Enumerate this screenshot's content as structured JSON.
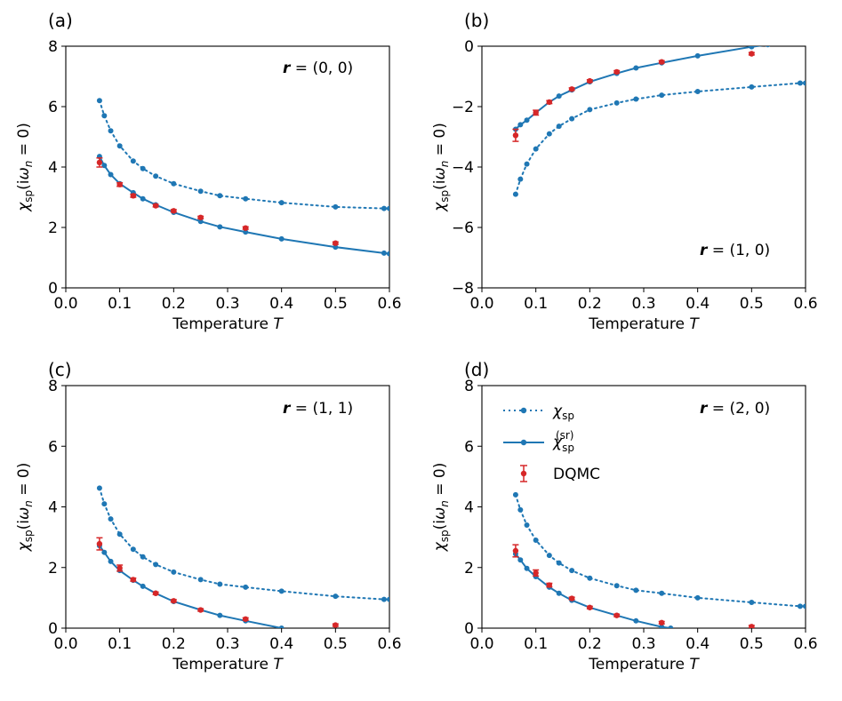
{
  "figure": {
    "xlabel_text": "Temperature ",
    "xlabel_var": "T",
    "ylabel": {
      "chi": "χ",
      "sub": "sp",
      "paren_open": "(i",
      "omega": "ω",
      "omega_sub": "n",
      "eq": " = 0)"
    },
    "colors": {
      "chi_sp": "#1f77b4",
      "chi_sr": "#1f77b4",
      "dqmc": "#d62728"
    }
  },
  "legend": {
    "chi_sp": {
      "main": "χ",
      "sub": "sp"
    },
    "chi_sr": {
      "main": "χ",
      "sub": "sp",
      "sup": "(sr)"
    },
    "dqmc": "DQMC"
  },
  "chart_data": [
    {
      "type": "line",
      "panel_label": "(a)",
      "r_bold": "r",
      "r_value": " = (0, 0)",
      "xlim": [
        0.0,
        0.6
      ],
      "ylim": [
        0,
        8
      ],
      "xticks": [
        "0.0",
        "0.1",
        "0.2",
        "0.3",
        "0.4",
        "0.5",
        "0.6"
      ],
      "yticks": [
        "0",
        "2",
        "4",
        "6",
        "8"
      ],
      "series": [
        {
          "name": "χsp",
          "style": "dotted",
          "x": [
            0.0625,
            0.0714,
            0.0833,
            0.1,
            0.125,
            0.1429,
            0.1667,
            0.2,
            0.25,
            0.2857,
            0.3333,
            0.4,
            0.5,
            0.59,
            0.6
          ],
          "y": [
            6.2,
            5.7,
            5.2,
            4.7,
            4.2,
            3.95,
            3.7,
            3.45,
            3.2,
            3.05,
            2.95,
            2.82,
            2.68,
            2.63,
            2.63
          ]
        },
        {
          "name": "χsp(sr)",
          "style": "solid",
          "x": [
            0.0625,
            0.0714,
            0.0833,
            0.1,
            0.125,
            0.1429,
            0.1667,
            0.2,
            0.25,
            0.2857,
            0.3333,
            0.4,
            0.5,
            0.59,
            0.6
          ],
          "y": [
            4.35,
            4.05,
            3.75,
            3.45,
            3.15,
            2.95,
            2.75,
            2.5,
            2.2,
            2.02,
            1.85,
            1.62,
            1.35,
            1.15,
            1.13
          ]
        },
        {
          "name": "DQMC",
          "style": "errorbar",
          "x": [
            0.0625,
            0.1,
            0.125,
            0.1667,
            0.2,
            0.25,
            0.3333,
            0.5
          ],
          "y": [
            4.15,
            3.42,
            3.05,
            2.72,
            2.55,
            2.33,
            1.98,
            1.48
          ],
          "err": [
            0.15,
            0.06,
            0.05,
            0.04,
            0.04,
            0.04,
            0.04,
            0.04
          ]
        }
      ]
    },
    {
      "type": "line",
      "panel_label": "(b)",
      "r_bold": "r",
      "r_value": " = (1, 0)",
      "xlim": [
        0.0,
        0.6
      ],
      "ylim": [
        -8,
        0
      ],
      "xticks": [
        "0.0",
        "0.1",
        "0.2",
        "0.3",
        "0.4",
        "0.5",
        "0.6"
      ],
      "yticks": [
        "−8",
        "−6",
        "−4",
        "−2",
        "0"
      ],
      "series": [
        {
          "name": "χsp",
          "style": "dotted",
          "x": [
            0.0625,
            0.0714,
            0.0833,
            0.1,
            0.125,
            0.1429,
            0.1667,
            0.2,
            0.25,
            0.2857,
            0.3333,
            0.4,
            0.5,
            0.59,
            0.6
          ],
          "y": [
            -4.9,
            -4.4,
            -3.9,
            -3.4,
            -2.9,
            -2.65,
            -2.4,
            -2.1,
            -1.88,
            -1.75,
            -1.62,
            -1.5,
            -1.35,
            -1.22,
            -1.22
          ]
        },
        {
          "name": "χsp(sr)",
          "style": "solid",
          "x": [
            0.0625,
            0.0714,
            0.0833,
            0.1,
            0.125,
            0.1429,
            0.1667,
            0.2,
            0.25,
            0.2857,
            0.3333,
            0.4,
            0.5,
            0.53
          ],
          "y": [
            -2.75,
            -2.6,
            -2.45,
            -2.2,
            -1.85,
            -1.65,
            -1.45,
            -1.18,
            -0.9,
            -0.72,
            -0.55,
            -0.32,
            -0.02,
            0.05
          ]
        },
        {
          "name": "DQMC",
          "style": "errorbar",
          "x": [
            0.0625,
            0.1,
            0.125,
            0.1667,
            0.2,
            0.25,
            0.3333,
            0.5
          ],
          "y": [
            -2.95,
            -2.2,
            -1.85,
            -1.42,
            -1.15,
            -0.85,
            -0.52,
            -0.25
          ],
          "err": [
            0.2,
            0.08,
            0.05,
            0.04,
            0.04,
            0.04,
            0.04,
            0.04
          ]
        }
      ]
    },
    {
      "type": "line",
      "panel_label": "(c)",
      "r_bold": "r",
      "r_value": " = (1, 1)",
      "xlim": [
        0.0,
        0.6
      ],
      "ylim": [
        0,
        8
      ],
      "xticks": [
        "0.0",
        "0.1",
        "0.2",
        "0.3",
        "0.4",
        "0.5",
        "0.6"
      ],
      "yticks": [
        "0",
        "2",
        "4",
        "6",
        "8"
      ],
      "series": [
        {
          "name": "χsp",
          "style": "dotted",
          "x": [
            0.0625,
            0.0714,
            0.0833,
            0.1,
            0.125,
            0.1429,
            0.1667,
            0.2,
            0.25,
            0.2857,
            0.3333,
            0.4,
            0.5,
            0.59,
            0.6
          ],
          "y": [
            4.62,
            4.1,
            3.6,
            3.1,
            2.6,
            2.35,
            2.1,
            1.85,
            1.6,
            1.45,
            1.35,
            1.22,
            1.05,
            0.95,
            0.95
          ]
        },
        {
          "name": "χsp(sr)",
          "style": "solid",
          "x": [
            0.0625,
            0.0714,
            0.0833,
            0.1,
            0.125,
            0.1429,
            0.1667,
            0.2,
            0.25,
            0.2857,
            0.3333,
            0.4
          ],
          "y": [
            2.72,
            2.5,
            2.2,
            1.9,
            1.58,
            1.38,
            1.15,
            0.88,
            0.6,
            0.42,
            0.24,
            0.0
          ]
        },
        {
          "name": "DQMC",
          "style": "errorbar",
          "x": [
            0.0625,
            0.1,
            0.125,
            0.1667,
            0.2,
            0.25,
            0.3333,
            0.5
          ],
          "y": [
            2.78,
            1.98,
            1.6,
            1.15,
            0.9,
            0.6,
            0.3,
            0.1
          ],
          "err": [
            0.2,
            0.1,
            0.05,
            0.04,
            0.04,
            0.04,
            0.04,
            0.04
          ]
        }
      ]
    },
    {
      "type": "line",
      "panel_label": "(d)",
      "r_bold": "r",
      "r_value": " = (2, 0)",
      "xlim": [
        0.0,
        0.6
      ],
      "ylim": [
        0,
        8
      ],
      "xticks": [
        "0.0",
        "0.1",
        "0.2",
        "0.3",
        "0.4",
        "0.5",
        "0.6"
      ],
      "yticks": [
        "0",
        "2",
        "4",
        "6",
        "8"
      ],
      "series": [
        {
          "name": "χsp",
          "style": "dotted",
          "x": [
            0.0625,
            0.0714,
            0.0833,
            0.1,
            0.125,
            0.1429,
            0.1667,
            0.2,
            0.25,
            0.2857,
            0.3333,
            0.4,
            0.5,
            0.59,
            0.6
          ],
          "y": [
            4.4,
            3.9,
            3.4,
            2.9,
            2.4,
            2.15,
            1.9,
            1.65,
            1.4,
            1.25,
            1.15,
            1.0,
            0.85,
            0.72,
            0.72
          ]
        },
        {
          "name": "χsp(sr)",
          "style": "solid",
          "x": [
            0.0625,
            0.0714,
            0.0833,
            0.1,
            0.125,
            0.1429,
            0.1667,
            0.2,
            0.25,
            0.2857,
            0.3333,
            0.35
          ],
          "y": [
            2.45,
            2.25,
            1.97,
            1.7,
            1.35,
            1.15,
            0.92,
            0.68,
            0.42,
            0.24,
            0.04,
            0.0
          ]
        },
        {
          "name": "DQMC",
          "style": "errorbar",
          "x": [
            0.0625,
            0.1,
            0.125,
            0.1667,
            0.2,
            0.25,
            0.3333,
            0.5
          ],
          "y": [
            2.55,
            1.82,
            1.42,
            0.98,
            0.68,
            0.42,
            0.18,
            0.05
          ],
          "err": [
            0.2,
            0.1,
            0.06,
            0.04,
            0.04,
            0.04,
            0.04,
            0.04
          ]
        }
      ]
    }
  ]
}
